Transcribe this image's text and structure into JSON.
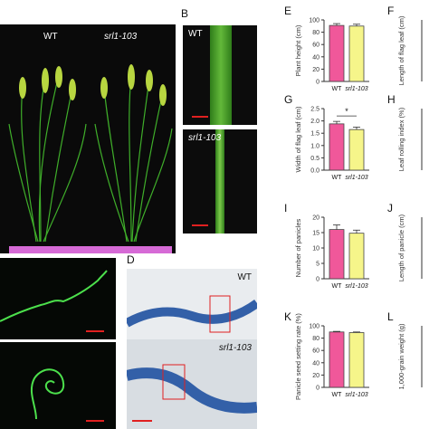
{
  "panels": {
    "a": {
      "wt": "WT",
      "mut": "srl1-103"
    },
    "b": {
      "letter": "B",
      "top_label": "WT",
      "bottom_label": "srl1-103"
    },
    "d": {
      "letter": "D",
      "top_label": "WT",
      "bottom_label": "srl1-103"
    }
  },
  "colors": {
    "wt_bar": "#f0589a",
    "mut_bar": "#f6f58a",
    "scale": "#e02020"
  },
  "chart_data": [
    {
      "type": "bar",
      "letter": "E",
      "ylabel": "Plant height (cm)",
      "categories": [
        "WT",
        "srl1-103"
      ],
      "values": [
        91,
        90
      ],
      "errors": [
        3,
        3
      ],
      "ylim": [
        0,
        100
      ],
      "yticks": [
        "0",
        "20",
        "40",
        "60",
        "80",
        "100"
      ],
      "sig": ""
    },
    {
      "type": "bar",
      "letter": "G",
      "ylabel": "Width of flag leaf (cm)",
      "categories": [
        "WT",
        "srl1-103"
      ],
      "values": [
        1.88,
        1.65
      ],
      "errors": [
        0.1,
        0.1
      ],
      "ylim": [
        0,
        2.5
      ],
      "yticks": [
        "0.0",
        "0.5",
        "1.0",
        "1.5",
        "2.0",
        "2.5"
      ],
      "sig": "*"
    },
    {
      "type": "bar",
      "letter": "I",
      "ylabel": "Number of panicles",
      "categories": [
        "WT",
        "srl1-103"
      ],
      "values": [
        16,
        14.8
      ],
      "errors": [
        1.5,
        1
      ],
      "ylim": [
        0,
        20
      ],
      "yticks": [
        "0",
        "5",
        "10",
        "15",
        "20"
      ],
      "sig": ""
    },
    {
      "type": "bar",
      "letter": "K",
      "ylabel": "Panicle seed setting rate (%)",
      "categories": [
        "WT",
        "srl1-103"
      ],
      "values": [
        90,
        89
      ],
      "errors": [
        1,
        1
      ],
      "ylim": [
        0,
        100
      ],
      "yticks": [
        "0",
        "20",
        "40",
        "60",
        "80",
        "100"
      ],
      "sig": ""
    }
  ],
  "right_panels": [
    {
      "letter": "F",
      "ylabel": "Length of flag leaf (cm)"
    },
    {
      "letter": "H",
      "ylabel": "Leaf rolling index (%)"
    },
    {
      "letter": "J",
      "ylabel": "Length of panicle (cm)"
    },
    {
      "letter": "L",
      "ylabel": "1,000-grain weight (g)"
    }
  ]
}
